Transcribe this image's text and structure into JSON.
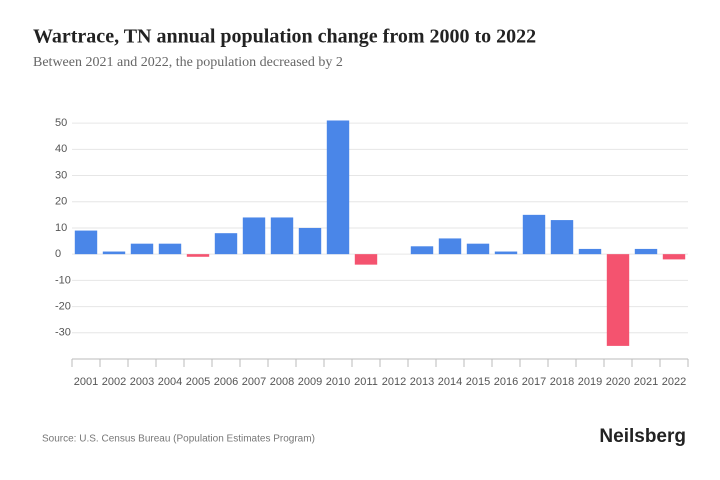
{
  "chart_data": {
    "type": "bar",
    "title": "Wartrace, TN annual population change from 2000 to 2022",
    "subtitle": "Between 2021 and 2022, the population decreased by 2",
    "source": "Source: U.S. Census Bureau (Population Estimates Program)",
    "brand": "Neilsberg",
    "categories": [
      "2001",
      "2002",
      "2003",
      "2004",
      "2005",
      "2006",
      "2007",
      "2008",
      "2009",
      "2010",
      "2011",
      "2012",
      "2013",
      "2014",
      "2015",
      "2016",
      "2017",
      "2018",
      "2019",
      "2020",
      "2021",
      "2022"
    ],
    "values": [
      9,
      1,
      4,
      4,
      -1,
      8,
      14,
      14,
      10,
      51,
      -4,
      0,
      3,
      6,
      4,
      1,
      15,
      13,
      2,
      -35,
      2,
      -2
    ],
    "positive_color": "#4a86e8",
    "negative_color": "#f4536f",
    "ylim": [
      -40,
      55
    ],
    "yticks": [
      -30,
      -20,
      -10,
      0,
      10,
      20,
      30,
      40,
      50
    ],
    "grid": true
  }
}
